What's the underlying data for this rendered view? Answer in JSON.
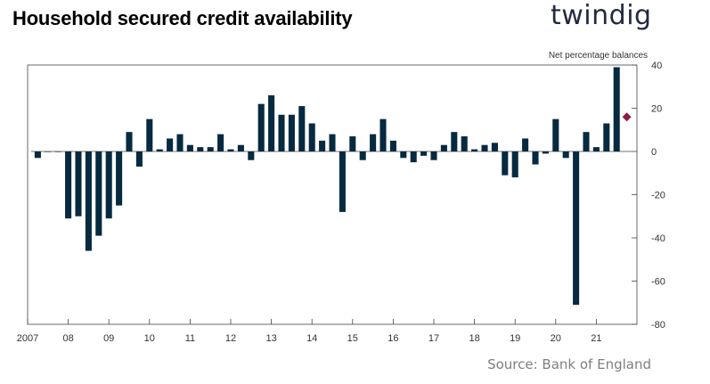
{
  "title": "Household secured credit availability",
  "logo_text": "twindig",
  "source": "Source: Bank of England",
  "colors": {
    "bar": "#062a40",
    "marker": "#8b1e3f",
    "axis": "#444444",
    "text": "#333333"
  },
  "chart_data": {
    "type": "bar",
    "ylabel": "Net percentage balances",
    "ylim": [
      -80,
      40
    ],
    "yticks": [
      40,
      20,
      0,
      -20,
      -40,
      -60,
      -80
    ],
    "xlim": [
      2007,
      2022
    ],
    "xticks": [
      {
        "x": 2007,
        "label": "2007"
      },
      {
        "x": 2008,
        "label": "08"
      },
      {
        "x": 2009,
        "label": "09"
      },
      {
        "x": 2010,
        "label": "10"
      },
      {
        "x": 2011,
        "label": "11"
      },
      {
        "x": 2012,
        "label": "12"
      },
      {
        "x": 2013,
        "label": "13"
      },
      {
        "x": 2014,
        "label": "14"
      },
      {
        "x": 2015,
        "label": "15"
      },
      {
        "x": 2016,
        "label": "16"
      },
      {
        "x": 2017,
        "label": "17"
      },
      {
        "x": 2018,
        "label": "18"
      },
      {
        "x": 2019,
        "label": "19"
      },
      {
        "x": 2020,
        "label": "20"
      },
      {
        "x": 2021,
        "label": "21"
      }
    ],
    "grid": false,
    "series": [
      {
        "x": [
          2007.25,
          2007.5,
          2007.75,
          2008.0,
          2008.25,
          2008.5,
          2008.75,
          2009.0,
          2009.25,
          2009.5,
          2009.75,
          2010.0,
          2010.25,
          2010.5,
          2010.75,
          2011.0,
          2011.25,
          2011.5,
          2011.75,
          2012.0,
          2012.25,
          2012.5,
          2012.75,
          2013.0,
          2013.25,
          2013.5,
          2013.75,
          2014.0,
          2014.25,
          2014.5,
          2014.75,
          2015.0,
          2015.25,
          2015.5,
          2015.75,
          2016.0,
          2016.25,
          2016.5,
          2016.75,
          2017.0,
          2017.25,
          2017.5,
          2017.75,
          2018.0,
          2018.25,
          2018.5,
          2018.75,
          2019.0,
          2019.25,
          2019.5,
          2019.75,
          2020.0,
          2020.25,
          2020.5,
          2020.75,
          2021.0,
          2021.25
        ],
        "values": [
          -3,
          0,
          0,
          -31,
          -30,
          -46,
          -39,
          -31,
          -25,
          9,
          -7,
          15,
          1,
          6,
          8,
          3,
          2,
          2,
          8,
          1,
          3,
          -4,
          22,
          26,
          17,
          17,
          21,
          13,
          5,
          8,
          -28,
          7,
          -4,
          8,
          15,
          5,
          -3,
          -5,
          -2,
          -4,
          3,
          9,
          7,
          1,
          3,
          4,
          -11,
          -12,
          6,
          -6,
          -1,
          15,
          -3,
          -71,
          9,
          2,
          13
        ]
      },
      {
        "x": [
          2021.5
        ],
        "values": [
          39
        ]
      }
    ],
    "projection": {
      "x": 2021.75,
      "value": 16
    }
  }
}
